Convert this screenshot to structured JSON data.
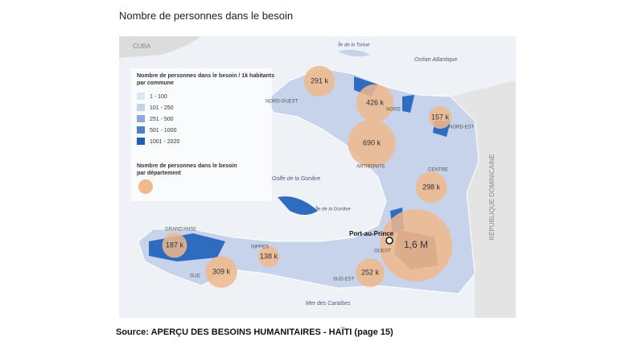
{
  "header": {
    "title": "Nombre de personnes dans le besoin"
  },
  "legend": {
    "title_1": "Nombre de personnes dans le besoin / 1k habitants",
    "title_2": "par commune",
    "classes": [
      {
        "label": "1 - 100",
        "color": "#dde6f4"
      },
      {
        "label": "101 - 250",
        "color": "#c2d1ec"
      },
      {
        "label": "251 - 500",
        "color": "#8fa9db"
      },
      {
        "label": "501 - 1000",
        "color": "#4f7fc6"
      },
      {
        "label": "1001 - 2020",
        "color": "#1f5fae"
      }
    ],
    "bubble_title_1": "Nombre de personnes dans le besoin",
    "bubble_title_2": "par département"
  },
  "bubbles": {
    "color": "#efb98b",
    "values": [
      291000,
      426000,
      157000,
      690000,
      298000,
      1600000,
      187000,
      309000,
      138000,
      252000
    ],
    "value_labels": [
      "291 k",
      "426 k",
      "157 k",
      "690 k",
      "298 k",
      "1,6 M",
      "187 k",
      "309 k",
      "138 k",
      "252 k"
    ]
  },
  "places": [
    "CUBA",
    "Île de la Tortue",
    "Océan Atlantique",
    "NORD-OUEST",
    "NORD",
    "NORD-EST",
    "ARTIBONITE",
    "CENTRE",
    "Golfe de la Gonâve",
    "Île de la Gonâve",
    "GRAND'ANSE",
    "NIPPES",
    "SUD",
    "OUEST",
    "SUD-EST",
    "Port-au-Prince",
    "Mer des Caraïbes",
    "RÉPUBLIQUE DOMINICAINE"
  ],
  "source": "Source: APERÇU DES BESOINS HUMANITAIRES - HAÏTI (page 15)"
}
